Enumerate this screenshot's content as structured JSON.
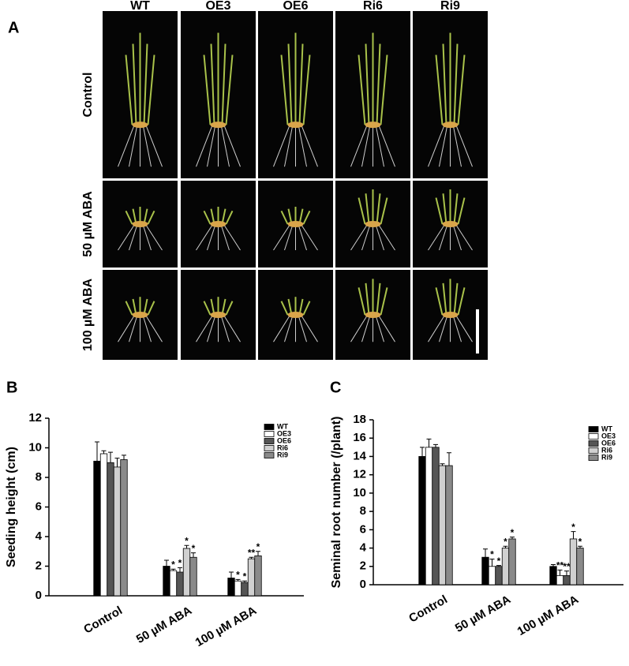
{
  "panel_a": {
    "label": "A",
    "columns": [
      "WT",
      "OE3",
      "OE6",
      "Ri6",
      "Ri9"
    ],
    "rows": [
      "Control",
      "50 µM ABA",
      "100 µM ABA"
    ]
  },
  "chart_data": [
    {
      "type": "bar",
      "panel": "B",
      "y_label": "Seeding height (cm)",
      "categories": [
        "Control",
        "50 µM ABA",
        "100 µM ABA"
      ],
      "ylim": [
        0,
        12
      ],
      "yticks": [
        0,
        2,
        4,
        6,
        8,
        10,
        12
      ],
      "legend": "top-right",
      "series": [
        {
          "name": "WT",
          "color": "#000000",
          "values": [
            9.1,
            2.0,
            1.2
          ],
          "errors": [
            1.3,
            0.4,
            0.4
          ],
          "stars": [
            null,
            null,
            null
          ]
        },
        {
          "name": "OE3",
          "color": "#ffffff",
          "values": [
            9.6,
            1.7,
            1.0
          ],
          "errors": [
            0.2,
            0.1,
            0.1
          ],
          "stars": [
            null,
            "*",
            "*"
          ]
        },
        {
          "name": "OE6",
          "color": "#555555",
          "values": [
            9.0,
            1.6,
            0.9
          ],
          "errors": [
            0.7,
            0.3,
            0.1
          ],
          "stars": [
            null,
            "*",
            "*"
          ]
        },
        {
          "name": "Ri6",
          "color": "#d0d0d0",
          "values": [
            8.7,
            3.2,
            2.5
          ],
          "errors": [
            0.6,
            0.2,
            0.1
          ],
          "stars": [
            null,
            "*",
            "**"
          ]
        },
        {
          "name": "Ri9",
          "color": "#8a8a8a",
          "values": [
            9.2,
            2.6,
            2.7
          ],
          "errors": [
            0.3,
            0.3,
            0.3
          ],
          "stars": [
            null,
            "*",
            "*"
          ]
        }
      ]
    },
    {
      "type": "bar",
      "panel": "C",
      "y_label": "Seminal root number (/plant)",
      "categories": [
        "Control",
        "50 µM ABA",
        "100 µM ABA"
      ],
      "ylim": [
        0,
        18
      ],
      "yticks": [
        0,
        2,
        4,
        6,
        8,
        10,
        12,
        14,
        16,
        18
      ],
      "legend": "top-right",
      "series": [
        {
          "name": "WT",
          "color": "#000000",
          "values": [
            14,
            3,
            2
          ],
          "errors": [
            1.0,
            0.9,
            0.2
          ],
          "stars": [
            null,
            null,
            null
          ]
        },
        {
          "name": "OE3",
          "color": "#ffffff",
          "values": [
            15,
            2,
            1
          ],
          "errors": [
            0.9,
            0.8,
            0.6
          ],
          "stars": [
            null,
            "*",
            "**"
          ]
        },
        {
          "name": "OE6",
          "color": "#555555",
          "values": [
            15,
            2,
            1
          ],
          "errors": [
            0.3,
            0.1,
            0.5
          ],
          "stars": [
            null,
            "*",
            "**"
          ]
        },
        {
          "name": "Ri6",
          "color": "#d0d0d0",
          "values": [
            13,
            4,
            5
          ],
          "errors": [
            0.2,
            0.2,
            0.8
          ],
          "stars": [
            null,
            "*",
            "*"
          ]
        },
        {
          "name": "Ri9",
          "color": "#8a8a8a",
          "values": [
            13,
            5,
            4
          ],
          "errors": [
            1.4,
            0.2,
            0.2
          ],
          "stars": [
            null,
            "*",
            "*"
          ]
        }
      ]
    }
  ]
}
